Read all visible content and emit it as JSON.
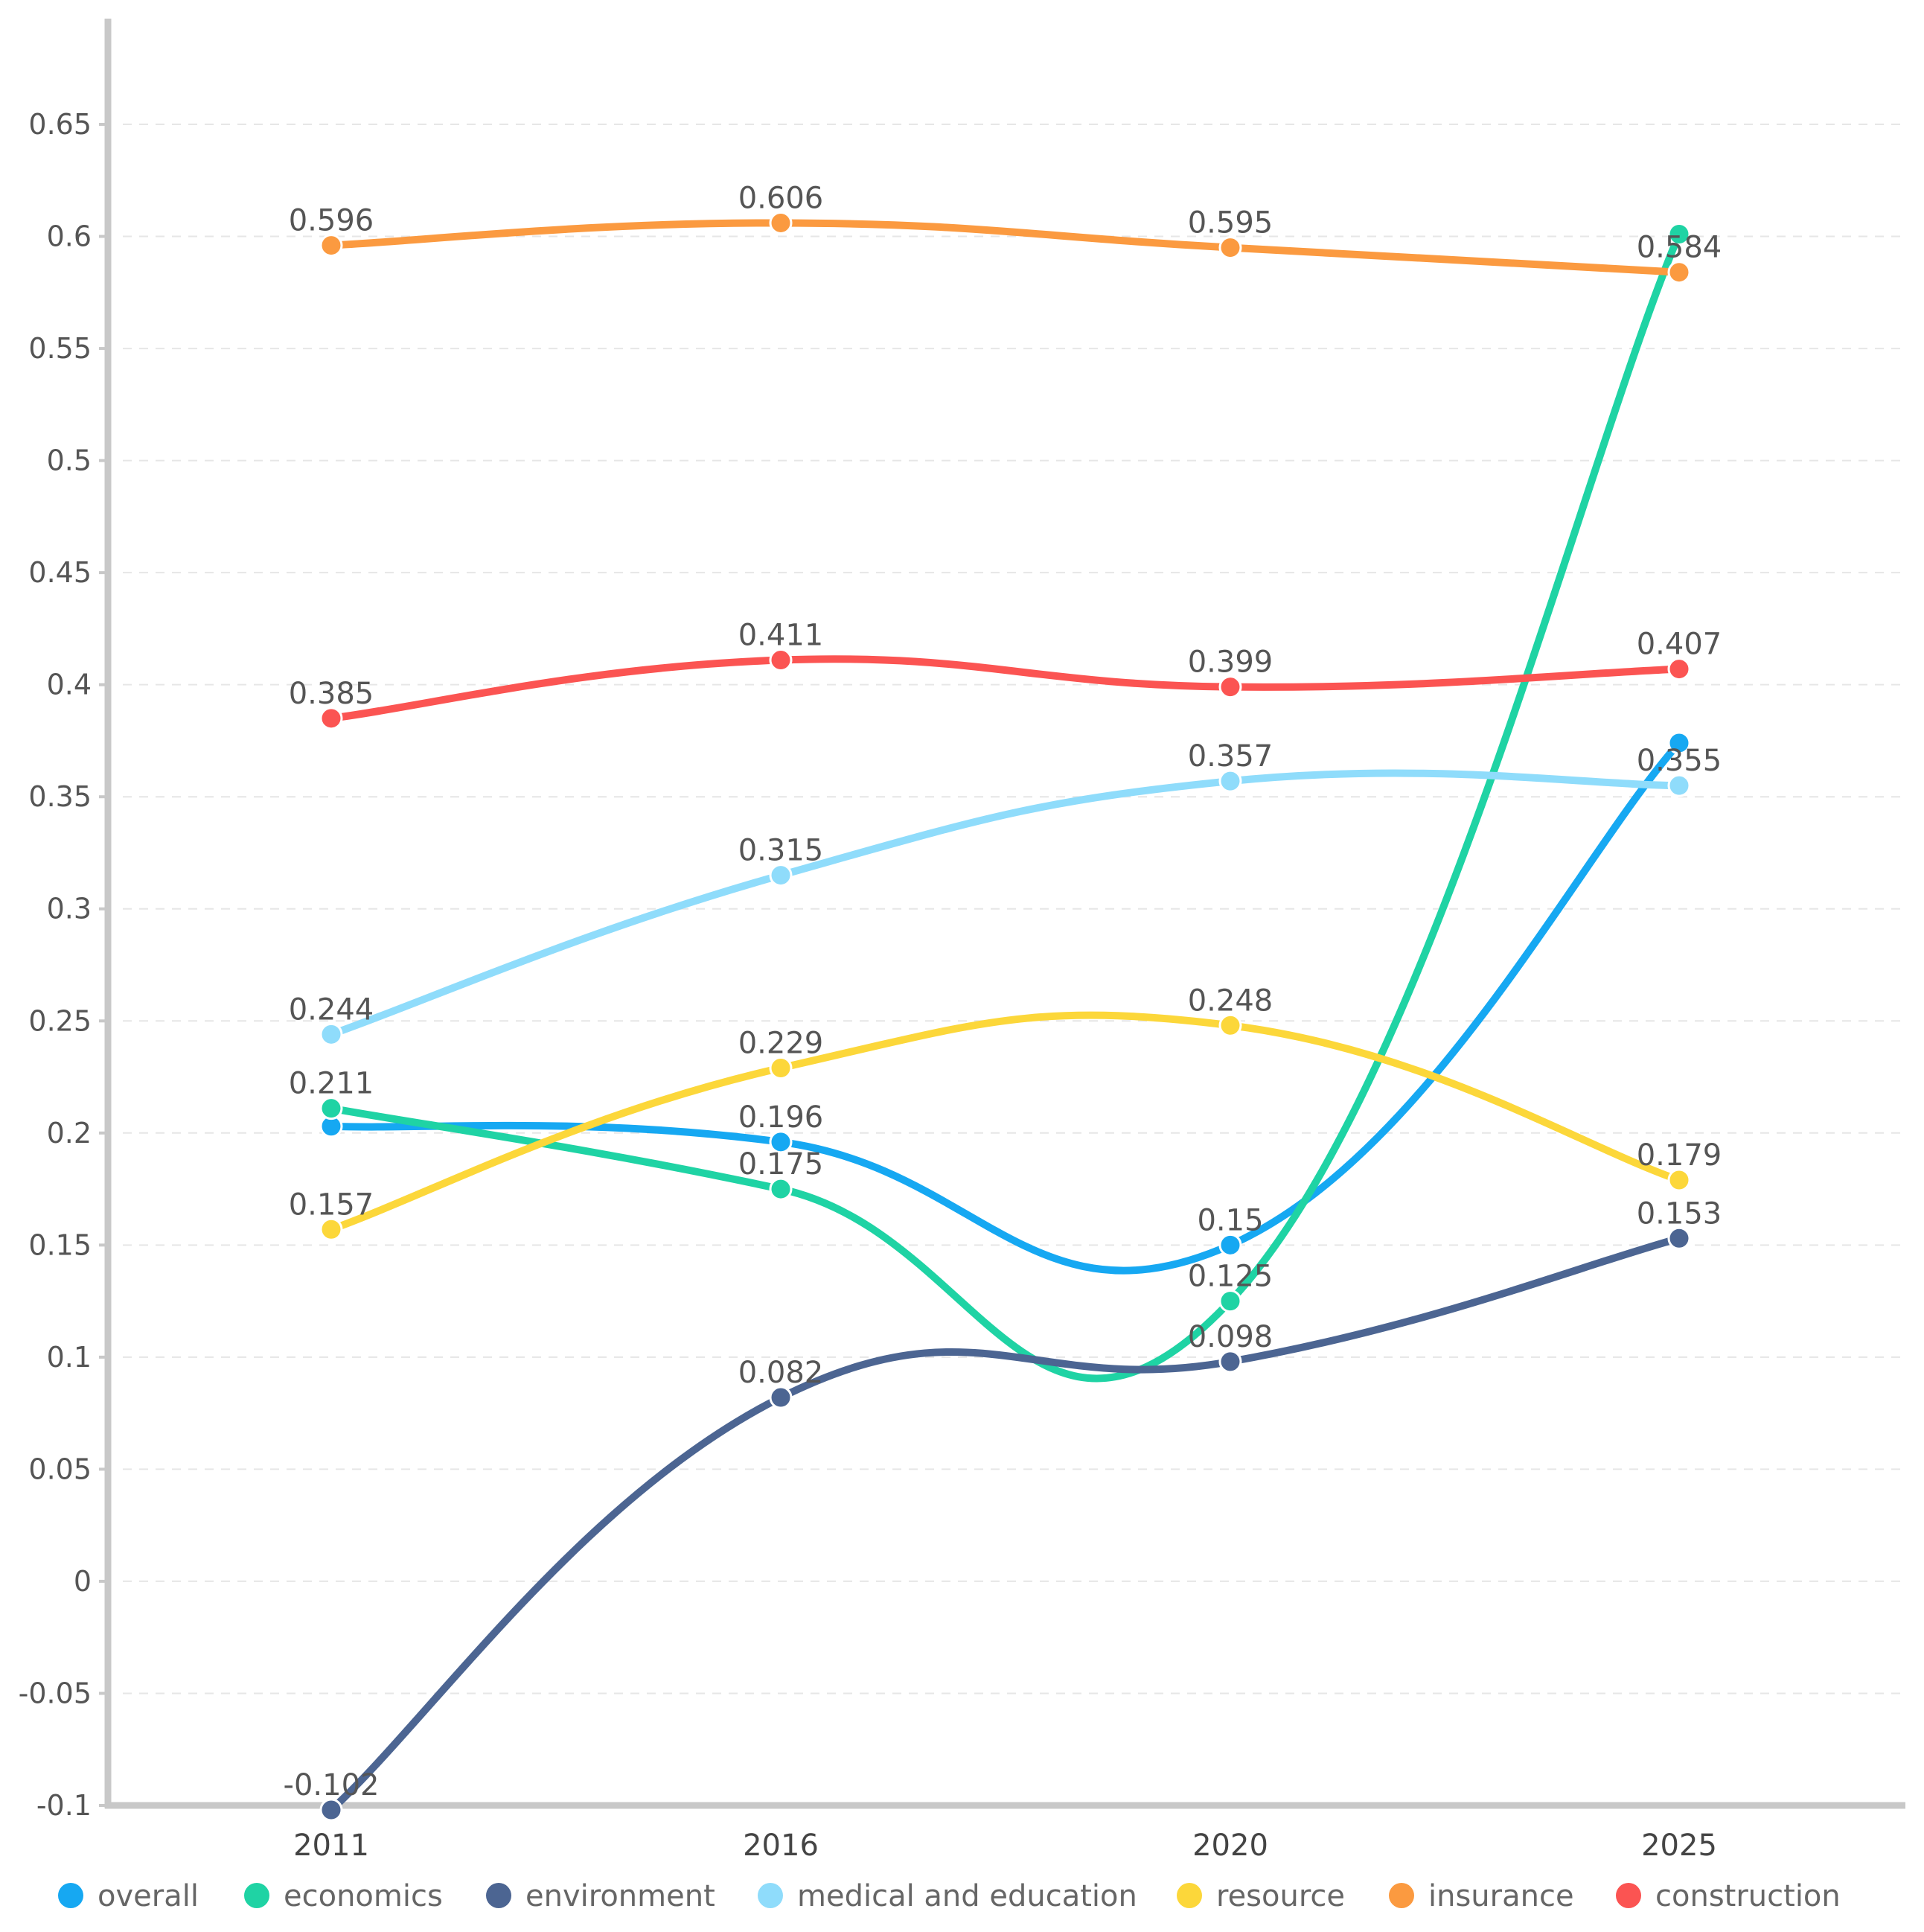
{
  "chart_data": {
    "type": "line",
    "title": "",
    "xlabel": "",
    "ylabel": "",
    "categories": [
      "2011",
      "2016",
      "2020",
      "2025"
    ],
    "ylim": [
      -0.1,
      0.7
    ],
    "yticks": [
      -0.1,
      -0.05,
      0,
      0.05,
      0.1,
      0.15,
      0.2,
      0.25,
      0.3,
      0.35,
      0.4,
      0.45,
      0.5,
      0.55,
      0.6,
      0.65
    ],
    "ytick_labels": [
      "-0.1",
      "-0.05",
      "0",
      "0.05",
      "0.1",
      "0.15",
      "0.2",
      "0.25",
      "0.3",
      "0.35",
      "0.4",
      "0.45",
      "0.5",
      "0.55",
      "0.6",
      "0.65"
    ],
    "grid": true,
    "smooth": true,
    "legend_position": "bottom",
    "series": [
      {
        "name": "overall",
        "color": "#16a8f2",
        "values": [
          0.203,
          0.196,
          0.15,
          0.374
        ],
        "labels": [
          "",
          "0.196",
          "0.15",
          ""
        ]
      },
      {
        "name": "economics",
        "color": "#1fd3a4",
        "values": [
          0.211,
          0.175,
          0.125,
          0.601
        ],
        "labels": [
          "0.211",
          "0.175",
          "0.125",
          ""
        ]
      },
      {
        "name": "environment",
        "color": "#4c6592",
        "values": [
          -0.102,
          0.082,
          0.098,
          0.153
        ],
        "labels": [
          "-0.102",
          "0.082",
          "0.098",
          "0.153"
        ]
      },
      {
        "name": "medical and education",
        "color": "#8fdcfb",
        "values": [
          0.244,
          0.315,
          0.357,
          0.355
        ],
        "labels": [
          "0.244",
          "0.315",
          "0.357",
          "0.355"
        ]
      },
      {
        "name": "resource",
        "color": "#fcd73a",
        "values": [
          0.157,
          0.229,
          0.248,
          0.179
        ],
        "labels": [
          "0.157",
          "0.229",
          "0.248",
          "0.179"
        ]
      },
      {
        "name": "insurance",
        "color": "#fb9a40",
        "values": [
          0.596,
          0.606,
          0.595,
          0.584
        ],
        "labels": [
          "0.596",
          "0.606",
          "0.595",
          "0.584"
        ]
      },
      {
        "name": "construction",
        "color": "#fb5452",
        "values": [
          0.385,
          0.411,
          0.399,
          0.407
        ],
        "labels": [
          "0.385",
          "0.411",
          "0.399",
          "0.407"
        ]
      }
    ]
  }
}
